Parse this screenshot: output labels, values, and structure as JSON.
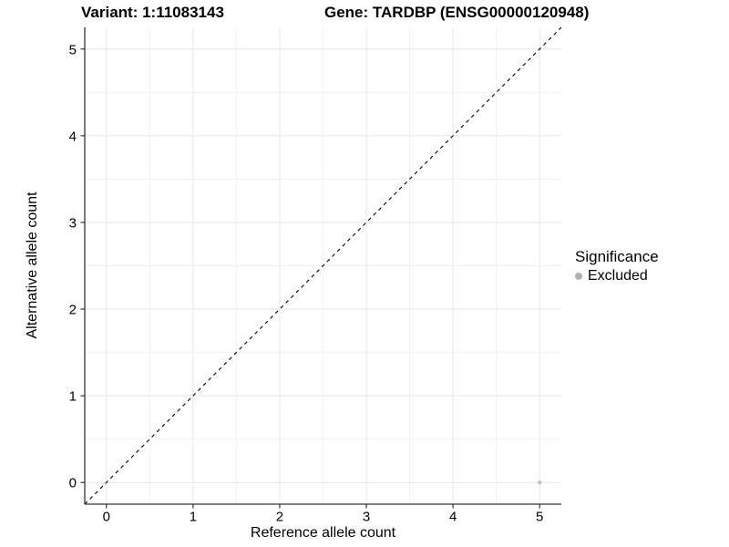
{
  "title": {
    "variant": "Variant: 1:11083143",
    "gene": "Gene: TARDBP (ENSG00000120948)"
  },
  "legend": {
    "title": "Significance",
    "items": [
      {
        "label": "Excluded",
        "color": "#b0b0b0"
      }
    ]
  },
  "chart_data": {
    "type": "scatter",
    "title": "Variant: 1:11083143    Gene: TARDBP (ENSG00000120948)",
    "xlabel": "Reference allele count",
    "ylabel": "Alternative allele count",
    "xlim": [
      -0.25,
      5.25
    ],
    "ylim": [
      -0.25,
      5.25
    ],
    "x_ticks": [
      0,
      1,
      2,
      3,
      4,
      5
    ],
    "y_ticks": [
      0,
      1,
      2,
      3,
      4,
      5
    ],
    "grid": true,
    "legend_position": "right",
    "series": [
      {
        "name": "Excluded",
        "color": "#bebebe"
      }
    ],
    "points": [
      {
        "x": 5,
        "y": 0,
        "series": "Excluded"
      }
    ],
    "reference_line": {
      "type": "identity",
      "style": "dashed",
      "color": "#000000"
    },
    "colors": {
      "grid_major": "#e6e6e6",
      "grid_minor": "#f2f2f2",
      "axis_line": "#333333",
      "text": "#000000"
    }
  }
}
